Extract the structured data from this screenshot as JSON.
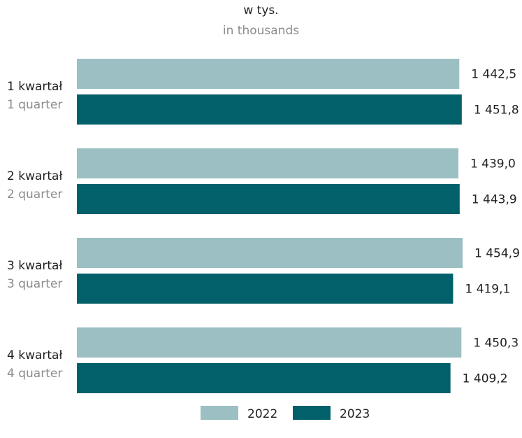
{
  "chart_data": {
    "type": "bar",
    "orientation": "horizontal",
    "unit_label": "w tys.",
    "unit_label_en": "in thousands",
    "categories": [
      "1 kwartał",
      "2 kwartał",
      "3 kwartał",
      "4 kwartał"
    ],
    "categories_en": [
      "1 quarter",
      "2 quarter",
      "3 quarter",
      "4 quarter"
    ],
    "series": [
      {
        "name": "2022",
        "color": "#9bbfc2",
        "values": [
          1442.5,
          1439.0,
          1454.9,
          1450.3
        ],
        "labels": [
          "1 442,5",
          "1 439,0",
          "1 454,9",
          "1 450,3"
        ]
      },
      {
        "name": "2023",
        "color": "#02606b",
        "values": [
          1451.8,
          1443.9,
          1419.1,
          1409.2
        ],
        "labels": [
          "1 451,8",
          "1 443,9",
          "1 419,1",
          "1 409,2"
        ]
      }
    ],
    "xlim": [
      0,
      1454.9
    ],
    "grid": false,
    "legend_position": "bottom-center"
  }
}
